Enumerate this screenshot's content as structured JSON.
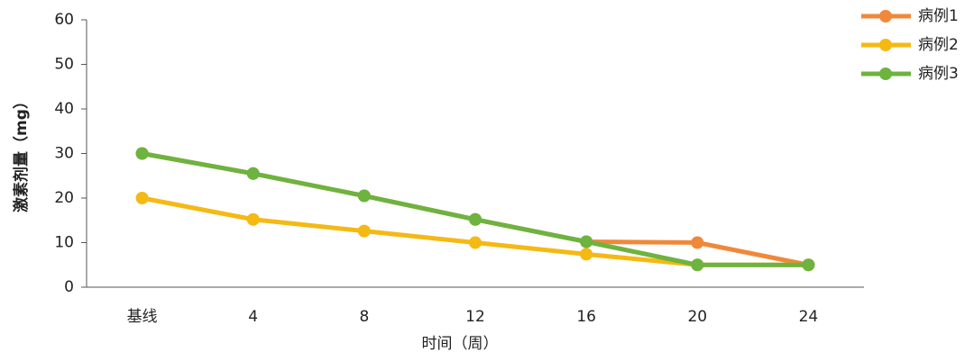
{
  "chart_data": {
    "type": "line",
    "categories": [
      "基线",
      "4",
      "8",
      "12",
      "16",
      "20",
      "24"
    ],
    "series": [
      {
        "name": "病例1",
        "color": "#f0883a",
        "values": [
          30,
          25.5,
          20.5,
          15.2,
          10.2,
          10,
          5
        ]
      },
      {
        "name": "病例2",
        "color": "#f5b914",
        "values": [
          20,
          15.2,
          12.6,
          10,
          7.4,
          5,
          5
        ]
      },
      {
        "name": "病例3",
        "color": "#6db33f",
        "values": [
          30,
          25.5,
          20.5,
          15.2,
          10.2,
          5,
          5
        ]
      }
    ],
    "ylim": [
      0,
      60
    ],
    "yticks": [
      0,
      10,
      20,
      30,
      40,
      50,
      60
    ],
    "x_label": "时间（周）",
    "y_label": "激素剂量（mg）",
    "legend": "top-right"
  }
}
